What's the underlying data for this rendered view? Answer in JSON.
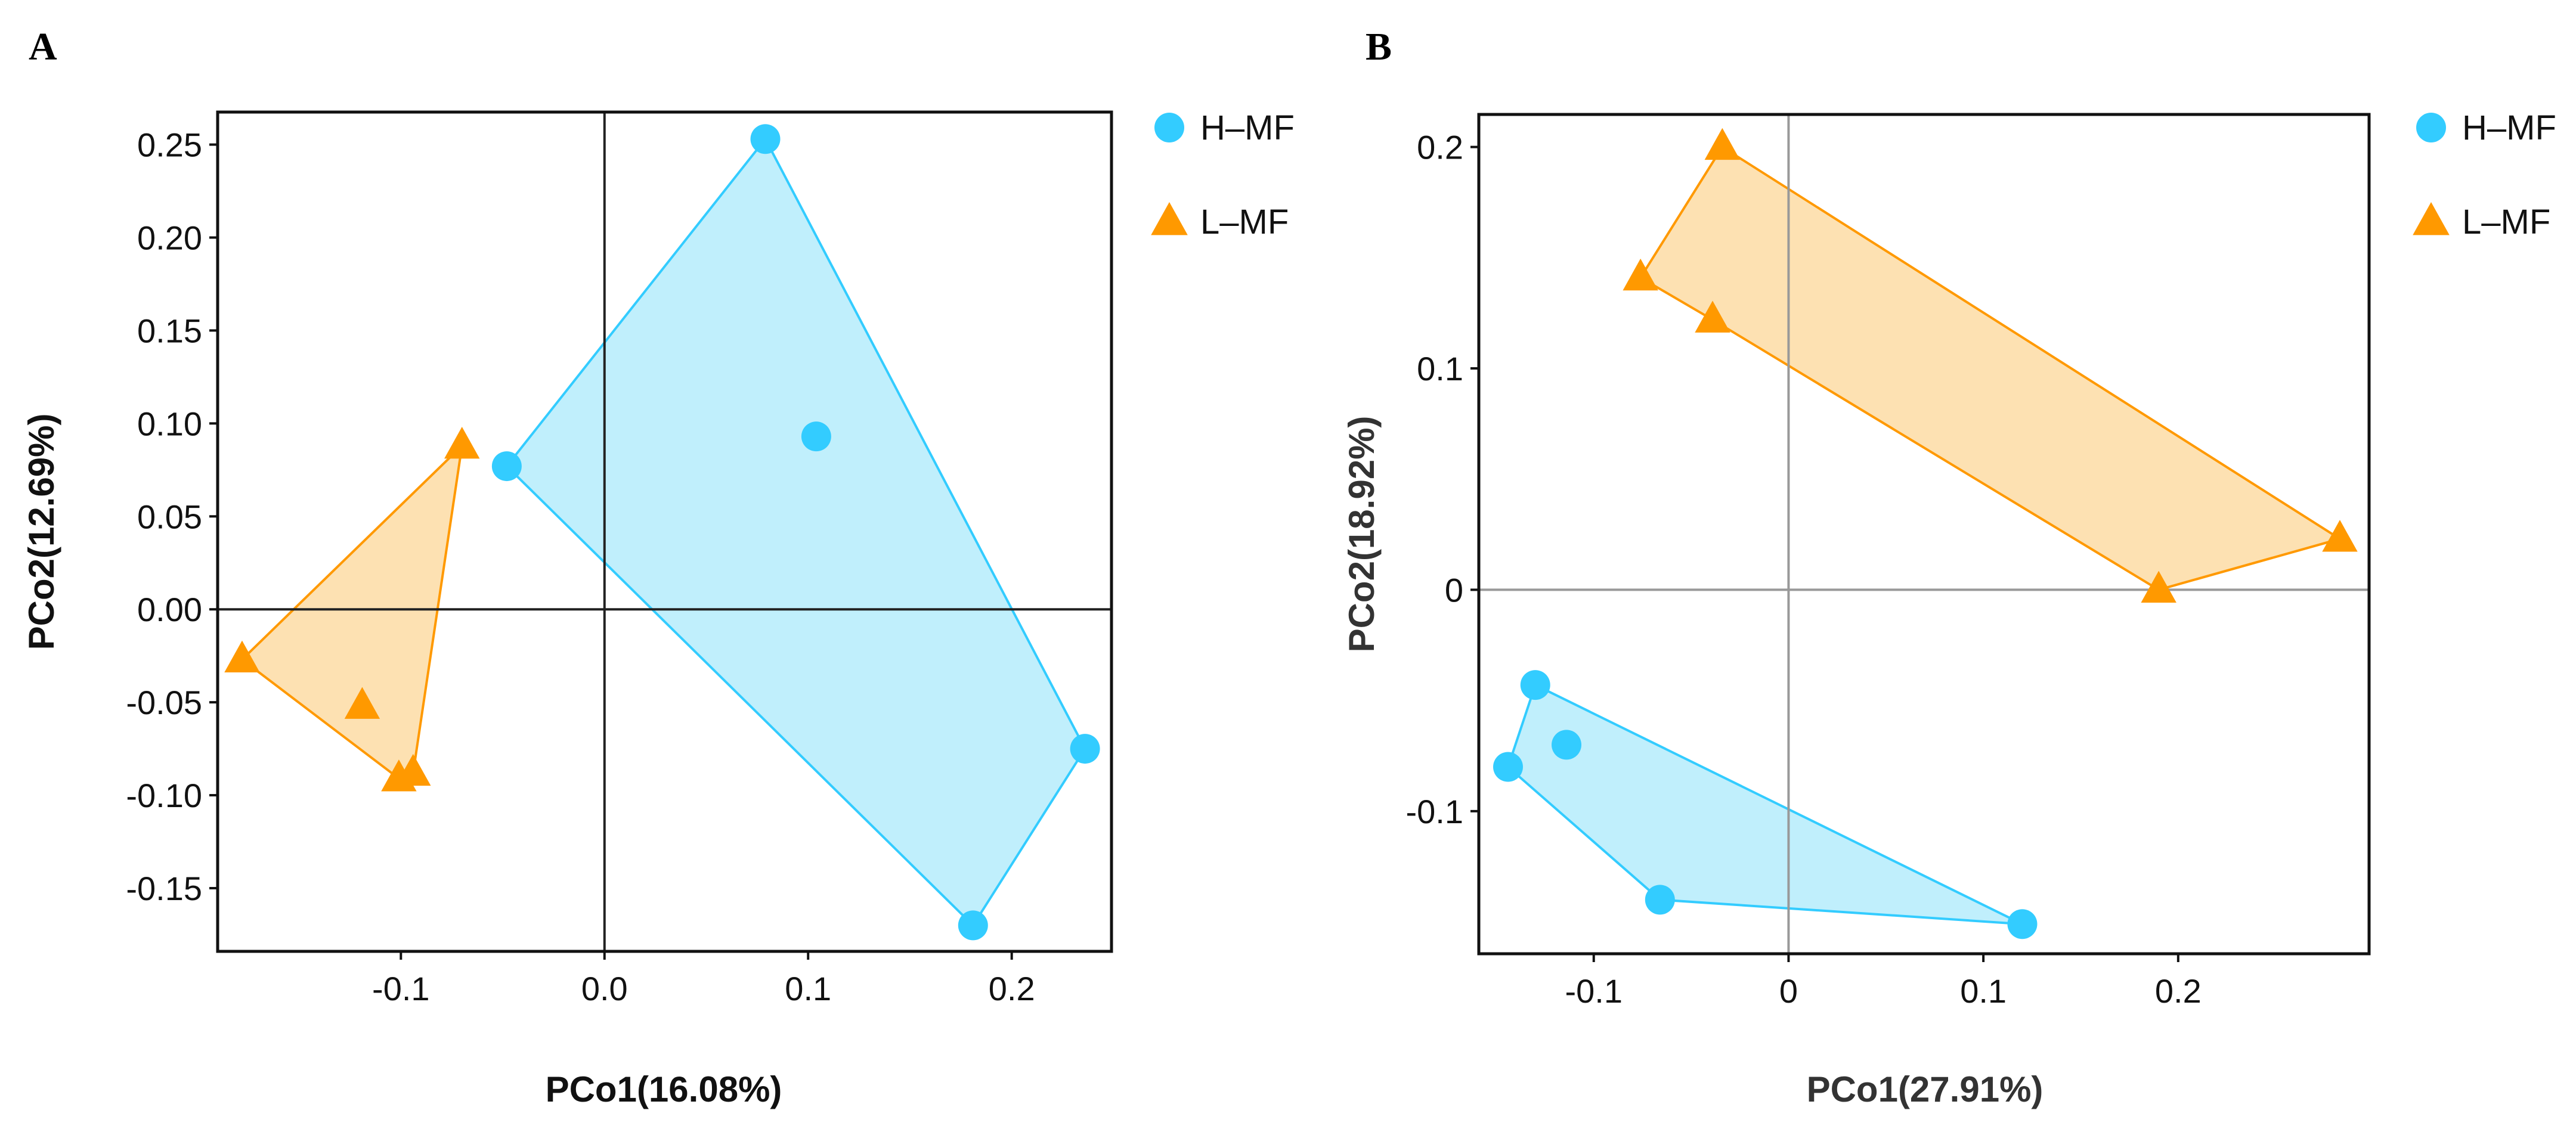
{
  "colors": {
    "H-MF": "#33ccff",
    "L-MF": "#ff9900",
    "H-MF_fill": "#bdeefc",
    "L-MF_fill": "#fddfae"
  },
  "chart_data": [
    {
      "panel": "A",
      "type": "scatter",
      "xlabel": "PCo1(16.08%)",
      "ylabel": "PCo2(12.69%)",
      "xlim": [
        -0.19,
        0.249
      ],
      "ylim": [
        -0.184,
        0.2675
      ],
      "xticks": [
        -0.1,
        0.0,
        0.1,
        0.2
      ],
      "xtick_labels": [
        "-0.1",
        "0.0",
        "0.1",
        "0.2"
      ],
      "yticks": [
        -0.15,
        -0.1,
        -0.05,
        0,
        0.05,
        0.1,
        0.15,
        0.2,
        0.25
      ],
      "ytick_labels": [
        "-0.15",
        "-0.10",
        "-0.05",
        "0.00",
        "0.05",
        "0.10",
        "0.15",
        "0.20",
        "0.25"
      ],
      "legend": [
        "H–MF",
        "L–MF"
      ],
      "legend_position": "right",
      "series": [
        {
          "name": "H–MF",
          "marker": "circle",
          "points": [
            [
              -0.048,
              0.077
            ],
            [
              0.079,
              0.253
            ],
            [
              0.104,
              0.093
            ],
            [
              0.236,
              -0.075
            ],
            [
              0.181,
              -0.17
            ]
          ],
          "hull": [
            [
              -0.048,
              0.077
            ],
            [
              0.079,
              0.253
            ],
            [
              0.236,
              -0.075
            ],
            [
              0.181,
              -0.17
            ]
          ]
        },
        {
          "name": "L–MF",
          "marker": "triangle",
          "points": [
            [
              -0.07,
              0.088
            ],
            [
              -0.178,
              -0.027
            ],
            [
              -0.119,
              -0.052
            ],
            [
              -0.101,
              -0.091
            ],
            [
              -0.094,
              -0.088
            ]
          ],
          "hull": [
            [
              -0.07,
              0.088
            ],
            [
              -0.178,
              -0.027
            ],
            [
              -0.101,
              -0.091
            ],
            [
              -0.094,
              -0.088
            ]
          ]
        }
      ]
    },
    {
      "panel": "B",
      "type": "scatter",
      "xlabel": "PCo1(27.91%)",
      "ylabel": "PCo2(18.92%)",
      "xlim": [
        -0.159,
        0.298
      ],
      "ylim": [
        -0.1644,
        0.2147
      ],
      "xticks": [
        -0.1,
        0,
        0.1,
        0.2
      ],
      "xtick_labels": [
        "-0.1",
        "0",
        "0.1",
        "0.2"
      ],
      "yticks": [
        -0.1,
        0,
        0.1,
        0.2
      ],
      "ytick_labels": [
        "-0.1",
        "0",
        "0.1",
        "0.2"
      ],
      "legend": [
        "H–MF",
        "L–MF"
      ],
      "legend_position": "right",
      "series": [
        {
          "name": "H–MF",
          "marker": "circle",
          "points": [
            [
              -0.13,
              -0.043
            ],
            [
              -0.114,
              -0.07
            ],
            [
              -0.144,
              -0.08
            ],
            [
              -0.066,
              -0.14
            ],
            [
              0.12,
              -0.151
            ]
          ],
          "hull": [
            [
              -0.13,
              -0.043
            ],
            [
              -0.144,
              -0.08
            ],
            [
              -0.066,
              -0.14
            ],
            [
              0.12,
              -0.151
            ]
          ]
        },
        {
          "name": "L–MF",
          "marker": "triangle",
          "points": [
            [
              -0.034,
              0.2
            ],
            [
              -0.076,
              0.141
            ],
            [
              -0.039,
              0.122
            ],
            [
              0.19,
              0.0
            ],
            [
              0.283,
              0.023
            ]
          ],
          "hull": [
            [
              -0.034,
              0.2
            ],
            [
              -0.076,
              0.141
            ],
            [
              -0.039,
              0.122
            ],
            [
              0.19,
              0.0
            ],
            [
              0.283,
              0.023
            ]
          ]
        }
      ]
    }
  ]
}
